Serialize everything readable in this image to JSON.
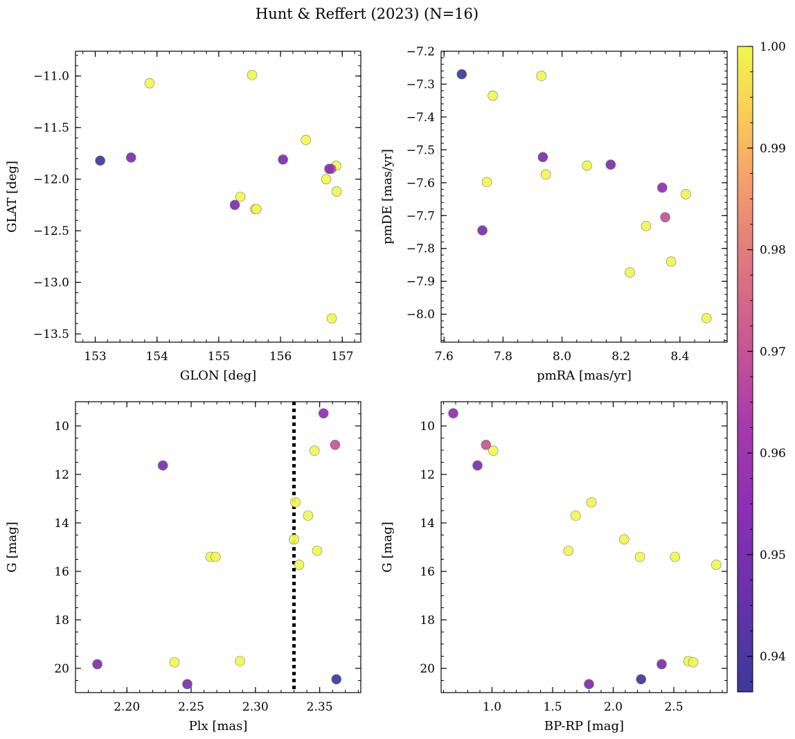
{
  "chart_data": {
    "title": "Hunt & Reffert (2023) (N=16)",
    "colorbar": {
      "min": 0.9365,
      "max": 1.0,
      "ticks": [
        0.94,
        0.95,
        0.96,
        0.97,
        0.98,
        0.99,
        1.0
      ],
      "tick_labels": [
        "0.94",
        "0.95",
        "0.96",
        "0.97",
        "0.98",
        "0.99",
        "1.00"
      ],
      "colormap": "plasma"
    },
    "stars": [
      {
        "glon": 153.08,
        "glat": -11.82,
        "pmra": 7.66,
        "pmde": -7.27,
        "plx": 2.363,
        "g": 20.45,
        "bprp": 2.23,
        "prob": 0.937
      },
      {
        "glon": 153.58,
        "glat": -11.79,
        "pmra": 7.73,
        "pmde": -7.745,
        "plx": 2.177,
        "g": 19.83,
        "bprp": 2.4,
        "prob": 0.95
      },
      {
        "glon": 153.88,
        "glat": -11.07,
        "pmra": 7.93,
        "pmde": -7.275,
        "plx": 2.288,
        "g": 19.7,
        "bprp": 2.62,
        "prob": 1.0
      },
      {
        "glon": 155.54,
        "glat": -10.99,
        "pmra": 7.765,
        "pmde": -7.335,
        "plx": 2.237,
        "g": 19.75,
        "bprp": 2.66,
        "prob": 1.0
      },
      {
        "glon": 156.04,
        "glat": -11.81,
        "pmra": 7.935,
        "pmde": -7.522,
        "plx": 2.228,
        "g": 11.63,
        "bprp": 0.88,
        "prob": 0.95
      },
      {
        "glon": 156.41,
        "glat": -11.62,
        "pmra": 8.085,
        "pmde": -7.548,
        "plx": 2.346,
        "g": 11.02,
        "bprp": 1.01,
        "prob": 1.0
      },
      {
        "glon": 155.26,
        "glat": -12.25,
        "pmra": 8.165,
        "pmde": -7.545,
        "plx": 2.247,
        "g": 20.65,
        "bprp": 1.8,
        "prob": 0.95
      },
      {
        "glon": 155.35,
        "glat": -12.17,
        "pmra": 7.945,
        "pmde": -7.575,
        "plx": 2.33,
        "g": 14.68,
        "bprp": 2.09,
        "prob": 1.0
      },
      {
        "glon": 155.59,
        "glat": -12.29,
        "pmra": 7.745,
        "pmde": -7.598,
        "plx": 2.265,
        "g": 15.4,
        "bprp": 2.22,
        "prob": 1.0
      },
      {
        "glon": 156.82,
        "glat": -11.9,
        "pmra": 8.35,
        "pmde": -7.705,
        "plx": 2.362,
        "g": 10.78,
        "bprp": 0.95,
        "prob": 0.97
      },
      {
        "glon": 156.79,
        "glat": -11.9,
        "pmra": 8.34,
        "pmde": -7.615,
        "plx": 2.353,
        "g": 9.48,
        "bprp": 0.68,
        "prob": 0.955
      },
      {
        "glon": 156.9,
        "glat": -11.87,
        "pmra": 8.42,
        "pmde": -7.635,
        "plx": 2.269,
        "g": 15.4,
        "bprp": 2.51,
        "prob": 1.0
      },
      {
        "glon": 156.74,
        "glat": -12.0,
        "pmra": 8.285,
        "pmde": -7.732,
        "plx": 2.334,
        "g": 15.73,
        "bprp": 2.85,
        "prob": 1.0
      },
      {
        "glon": 156.91,
        "glat": -12.12,
        "pmra": 8.37,
        "pmde": -7.84,
        "plx": 2.341,
        "g": 13.7,
        "bprp": 1.69,
        "prob": 1.0
      },
      {
        "glon": 156.83,
        "glat": -13.35,
        "pmra": 8.23,
        "pmde": -7.873,
        "plx": 2.331,
        "g": 13.15,
        "bprp": 1.82,
        "prob": 1.0
      },
      {
        "glon": 155.61,
        "glat": -12.29,
        "pmra": 8.49,
        "pmde": -8.012,
        "plx": 2.348,
        "g": 15.15,
        "bprp": 1.63,
        "prob": 1.0
      }
    ],
    "panels": [
      {
        "type": "scatter",
        "xkey": "glon",
        "ykey": "glat",
        "xlabel": "GLON [deg]",
        "ylabel": "GLAT [deg]",
        "xlim": [
          152.68,
          157.3
        ],
        "ylim": [
          -13.58,
          -10.76
        ],
        "yinvert": false,
        "xticks": [
          153,
          154,
          155,
          156,
          157
        ],
        "xtick_labels": [
          "153",
          "154",
          "155",
          "156",
          "157"
        ],
        "yticks": [
          -13.5,
          -13.0,
          -12.5,
          -12.0,
          -11.5,
          -11.0
        ],
        "ytick_labels": [
          "−13.5",
          "−13.0",
          "−12.5",
          "−12.0",
          "−11.5",
          "−11.0"
        ],
        "xminor": 0.2,
        "yminor": 0.1
      },
      {
        "type": "scatter",
        "xkey": "pmra",
        "ykey": "pmde",
        "xlabel": "pmRA [mas/yr]",
        "ylabel": "pmDE [mas/yr]",
        "xlim": [
          7.59,
          8.56
        ],
        "ylim": [
          -8.085,
          -7.2
        ],
        "yinvert": false,
        "xticks": [
          7.6,
          7.8,
          8.0,
          8.2,
          8.4
        ],
        "xtick_labels": [
          "7.6",
          "7.8",
          "8.0",
          "8.2",
          "8.4"
        ],
        "yticks": [
          -8.0,
          -7.9,
          -7.8,
          -7.7,
          -7.6,
          -7.5,
          -7.4,
          -7.3,
          -7.2
        ],
        "ytick_labels": [
          "−8.0",
          "−7.9",
          "−7.8",
          "−7.7",
          "−7.6",
          "−7.5",
          "−7.4",
          "−7.3",
          "−7.2"
        ],
        "xminor": 0.05,
        "yminor": 0.02
      },
      {
        "type": "scatter",
        "xkey": "plx",
        "ykey": "g",
        "xlabel": "Plx [mas]",
        "ylabel": "G [mag]",
        "xlim": [
          2.16,
          2.382
        ],
        "ylim": [
          9.0,
          21.0
        ],
        "yinvert": true,
        "xticks": [
          2.2,
          2.25,
          2.3,
          2.35
        ],
        "xtick_labels": [
          "2.20",
          "2.25",
          "2.30",
          "2.35"
        ],
        "yticks": [
          10,
          12,
          14,
          16,
          18,
          20
        ],
        "ytick_labels": [
          "10",
          "12",
          "14",
          "16",
          "18",
          "20"
        ],
        "xminor": 0.01,
        "yminor": 0.5,
        "vline": 2.33
      },
      {
        "type": "scatter",
        "xkey": "bprp",
        "ykey": "g",
        "xlabel": "BP-RP [mag]",
        "ylabel": "G [mag]",
        "xlim": [
          0.58,
          2.94
        ],
        "ylim": [
          9.0,
          21.0
        ],
        "yinvert": true,
        "xticks": [
          1.0,
          1.5,
          2.0,
          2.5
        ],
        "xtick_labels": [
          "1.0",
          "1.5",
          "2.0",
          "2.5"
        ],
        "yticks": [
          10,
          12,
          14,
          16,
          18,
          20
        ],
        "ytick_labels": [
          "10",
          "12",
          "14",
          "16",
          "18",
          "20"
        ],
        "xminor": 0.1,
        "yminor": 0.5
      }
    ]
  }
}
